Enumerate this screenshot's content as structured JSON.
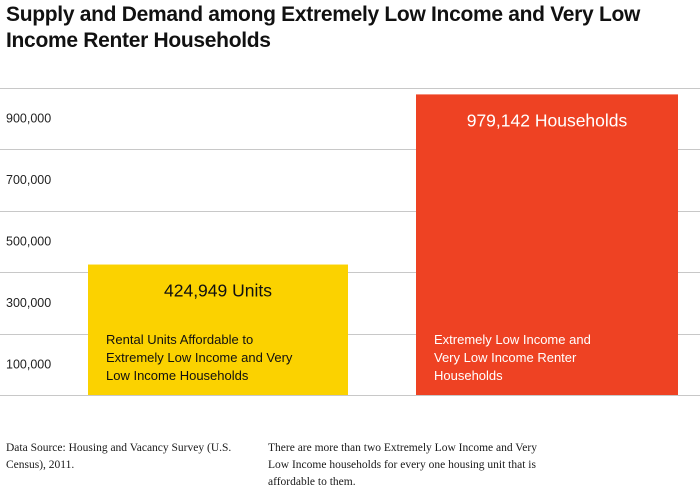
{
  "title": "Supply and Demand among Extremely Low Income and Very Low Income Renter Households",
  "chart_data": {
    "type": "bar",
    "categories": [
      "Rental Units Affordable to Extremely Low Income and Very Low Income Households",
      "Extremely Low Income and Very Low Income Renter Households"
    ],
    "values": [
      424949,
      979142
    ],
    "value_labels": [
      "424,949 Units",
      "979,142 Households"
    ],
    "colors": [
      "#FBD200",
      "#EE4223"
    ],
    "yticks": [
      100000,
      300000,
      500000,
      700000,
      900000
    ],
    "ytick_labels": [
      "100,000",
      "300,000",
      "500,000",
      "700,000",
      "900,000"
    ],
    "gridlines": [
      0,
      200000,
      400000,
      600000,
      800000,
      1000000
    ],
    "ylim": [
      0,
      1000000
    ],
    "grid": true,
    "xlabel": "",
    "ylabel": ""
  },
  "footnotes": {
    "source": "Data Source: Housing and Vacancy Survey (U.S. Census), 2011.",
    "note": "There are more than two Extremely Low Income and Very Low Income households for every one housing unit that is affordable to them."
  }
}
